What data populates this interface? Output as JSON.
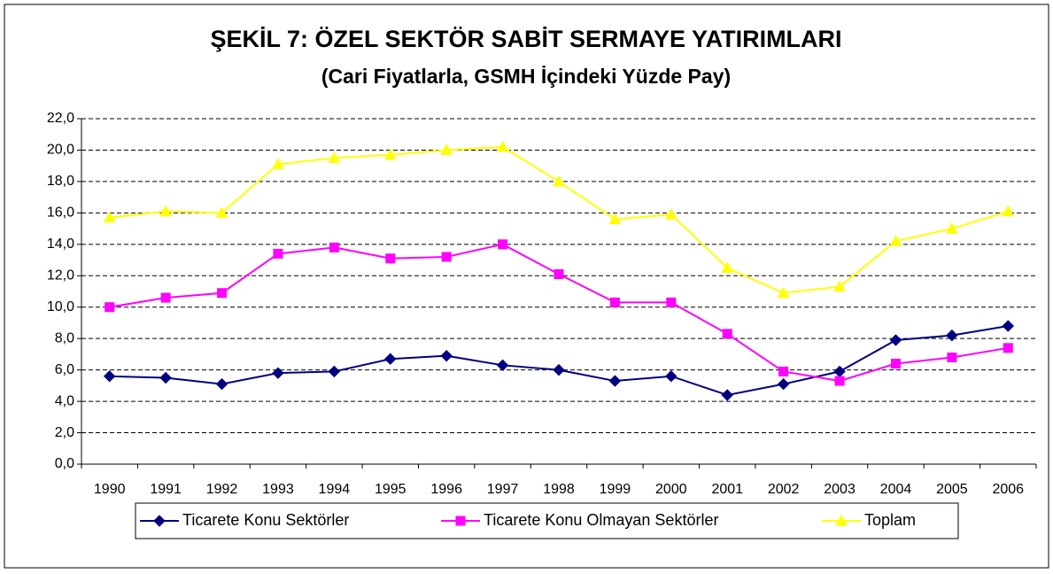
{
  "chart_data": {
    "type": "line",
    "title": "ŞEKİL 7: ÖZEL SEKTÖR SABİT SERMAYE YATIRIMLARI",
    "subtitle": "(Cari Fiyatlarla, GSMH İçindeki Yüzde Pay)",
    "categories": [
      "1990",
      "1991",
      "1992",
      "1993",
      "1994",
      "1995",
      "1996",
      "1997",
      "1998",
      "1999",
      "2000",
      "2001",
      "2002",
      "2003",
      "2004",
      "2005",
      "2006"
    ],
    "series": [
      {
        "name": "Ticarete Konu Sektörler",
        "color": "#000080",
        "marker": "diamond",
        "values": [
          5.6,
          5.5,
          5.1,
          5.8,
          5.9,
          6.7,
          6.9,
          6.3,
          6.0,
          5.3,
          5.6,
          4.4,
          5.1,
          5.9,
          7.9,
          8.2,
          8.8
        ]
      },
      {
        "name": "Ticarete Konu Olmayan Sektörler",
        "color": "#ff00ff",
        "marker": "square",
        "values": [
          10.0,
          10.6,
          10.9,
          13.4,
          13.8,
          13.1,
          13.2,
          14.0,
          12.1,
          10.3,
          10.3,
          8.3,
          5.9,
          5.3,
          6.4,
          6.8,
          7.4
        ]
      },
      {
        "name": "Toplam",
        "color": "#ffff00",
        "marker": "triangle",
        "values": [
          15.7,
          16.1,
          16.0,
          19.1,
          19.5,
          19.7,
          20.0,
          20.2,
          18.0,
          15.6,
          15.9,
          12.5,
          10.9,
          11.3,
          14.2,
          15.0,
          16.1
        ]
      }
    ],
    "ylim": [
      0,
      22
    ],
    "yticks": [
      {
        "value": 0,
        "label": "0,0"
      },
      {
        "value": 2,
        "label": "2,0"
      },
      {
        "value": 4,
        "label": "4,0"
      },
      {
        "value": 6,
        "label": "6,0"
      },
      {
        "value": 8,
        "label": "8,0"
      },
      {
        "value": 10,
        "label": "10,0"
      },
      {
        "value": 12,
        "label": "12,0"
      },
      {
        "value": 14,
        "label": "14,0"
      },
      {
        "value": 16,
        "label": "16,0"
      },
      {
        "value": 18,
        "label": "18,0"
      },
      {
        "value": 20,
        "label": "20,0"
      },
      {
        "value": 22,
        "label": "22,0"
      }
    ],
    "grid": true,
    "legend": "bottom"
  }
}
